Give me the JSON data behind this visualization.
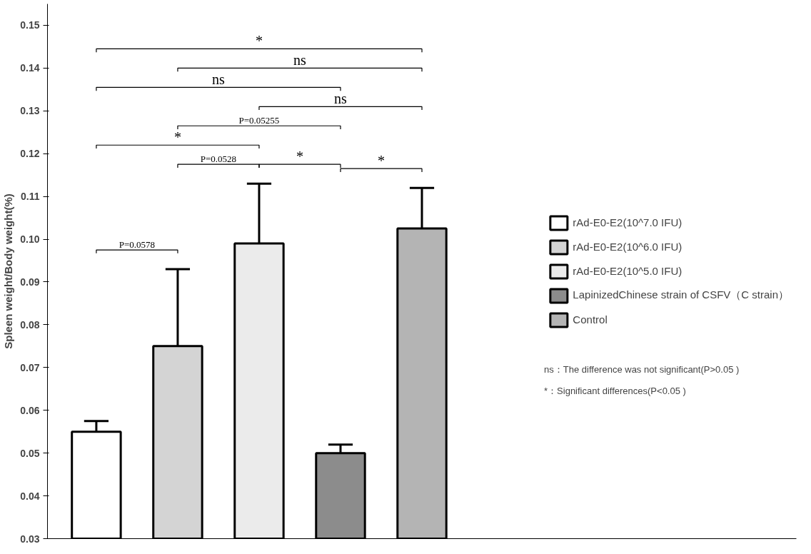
{
  "chart_data": {
    "type": "bar",
    "ylabel": "Spleen weight/Body weight(%)",
    "categories": [
      null,
      null,
      null,
      null,
      null
    ],
    "series": [
      {
        "name": "rAd-E0-E2(10^7.0 IFU)",
        "color": "#ffffff",
        "values": [
          0.055,
          null,
          null,
          null,
          null
        ],
        "errors": [
          [
            0.055,
            0.0575
          ],
          null,
          null,
          null,
          null
        ]
      },
      {
        "name": "rAd-E0-E2(10^6.0 IFU)",
        "color": "#d4d4d4",
        "values": [
          null,
          0.075,
          null,
          null,
          null
        ],
        "errors": [
          null,
          [
            0.075,
            0.093
          ],
          null,
          null,
          null
        ]
      },
      {
        "name": "rAd-E0-E2(10^5.0 IFU)",
        "color": "#ebebeb",
        "values": [
          null,
          null,
          0.099,
          null,
          null
        ],
        "errors": [
          null,
          null,
          [
            0.099,
            0.113
          ],
          null,
          null
        ]
      },
      {
        "name": "LapinizedChinese strain of CSFV（C strain）",
        "color": "#8c8c8c",
        "values": [
          null,
          null,
          null,
          0.05,
          null
        ],
        "errors": [
          null,
          null,
          null,
          [
            0.05,
            0.052
          ],
          null
        ]
      },
      {
        "name": "Control",
        "color": "#b4b4b4",
        "values": [
          null,
          null,
          null,
          null,
          0.1025
        ],
        "errors": [
          null,
          null,
          null,
          null,
          [
            0.1025,
            0.112
          ]
        ]
      }
    ],
    "ylim": [
      0.03,
      0.155
    ],
    "yticks": [
      0.03,
      0.04,
      0.05,
      0.06,
      0.07,
      0.08,
      0.09,
      {
        "value": 0.1,
        "label": "0.10"
      },
      0.11,
      0.12,
      0.13,
      0.14,
      0.15
    ],
    "stacked": true,
    "grid": false,
    "legend": "right",
    "tick_labels": "y",
    "annotations": [
      "ns",
      "*",
      "*",
      "ns",
      "P=0.05255",
      "*",
      "ns",
      "*",
      "P=0.0528",
      "P=0.0578",
      "ns：The difference was not significant(P>0.05 )",
      "*：Significant differences(P<0.05 )"
    ]
  }
}
